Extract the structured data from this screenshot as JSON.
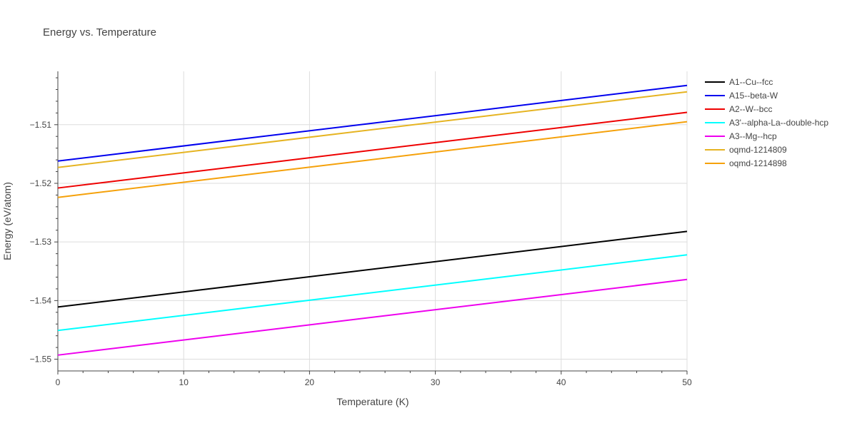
{
  "chart_data": {
    "type": "line",
    "title": "Energy vs. Temperature",
    "xlabel": "Temperature (K)",
    "ylabel": "Energy (eV/atom)",
    "xlim": [
      0,
      50
    ],
    "ylim": [
      -1.552,
      -1.5009
    ],
    "x_ticks": [
      0,
      10,
      20,
      30,
      40,
      50
    ],
    "y_ticks": [
      -1.55,
      -1.54,
      -1.53,
      -1.52,
      -1.51
    ],
    "y_tick_labels": [
      "−1.55",
      "−1.54",
      "−1.53",
      "−1.52",
      "−1.51"
    ],
    "grid": true,
    "legend_position": "right",
    "series": [
      {
        "name": "A1--Cu--fcc",
        "color": "#000000",
        "x": [
          0,
          50
        ],
        "y": [
          -1.5411,
          -1.5282
        ]
      },
      {
        "name": "A15--beta-W",
        "color": "#0000ee",
        "x": [
          0,
          50
        ],
        "y": [
          -1.5162,
          -1.5033
        ]
      },
      {
        "name": "A2--W--bcc",
        "color": "#ee0000",
        "x": [
          0,
          50
        ],
        "y": [
          -1.5208,
          -1.5079
        ]
      },
      {
        "name": "A3'--alpha-La--double-hcp",
        "color": "#00ffff",
        "x": [
          0,
          50
        ],
        "y": [
          -1.5451,
          -1.5322
        ]
      },
      {
        "name": "A3--Mg--hcp",
        "color": "#ee00ee",
        "x": [
          0,
          50
        ],
        "y": [
          -1.5493,
          -1.5364
        ]
      },
      {
        "name": "oqmd-1214809",
        "color": "#e6b422",
        "x": [
          0,
          50
        ],
        "y": [
          -1.5173,
          -1.5044
        ]
      },
      {
        "name": "oqmd-1214898",
        "color": "#f5a10a",
        "x": [
          0,
          50
        ],
        "y": [
          -1.5224,
          -1.5095
        ]
      }
    ]
  }
}
